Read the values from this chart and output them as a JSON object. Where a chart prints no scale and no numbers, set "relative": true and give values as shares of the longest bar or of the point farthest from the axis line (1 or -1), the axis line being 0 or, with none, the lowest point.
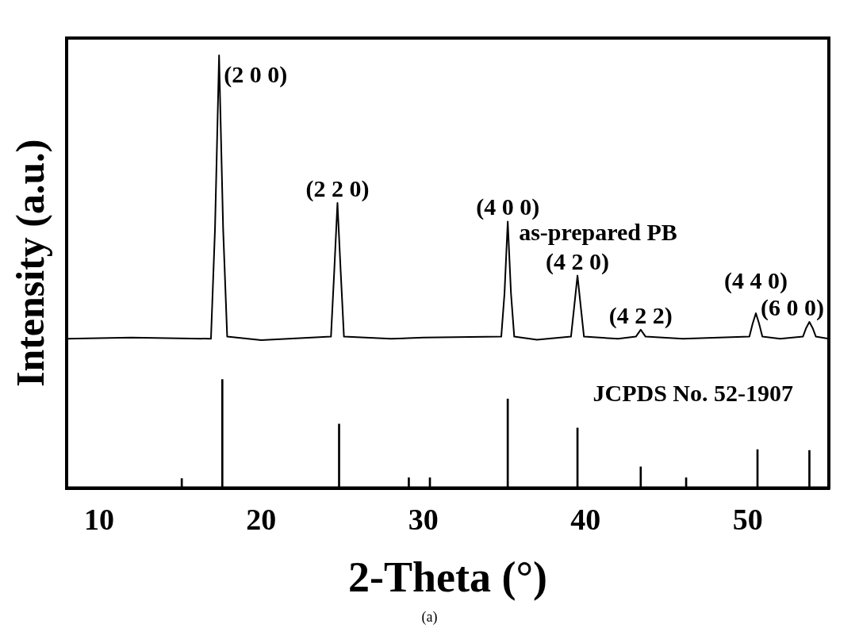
{
  "chart_data": {
    "type": "line",
    "relative": true,
    "xlabel": "2-Theta (°)",
    "ylabel": "Intensity (a.u.)",
    "xlim": [
      8,
      55
    ],
    "xticks": [
      10,
      20,
      30,
      40,
      50
    ],
    "grid": false,
    "legend": false,
    "marker": "none",
    "series": [
      {
        "name": "as-prepared PB",
        "color": "#000000",
        "x": [
          8,
          12,
          16.9,
          17.15,
          17.4,
          17.65,
          17.9,
          20,
          24.3,
          24.5,
          24.7,
          24.9,
          25.1,
          28,
          30,
          34.8,
          35.0,
          35.2,
          35.4,
          35.6,
          37,
          39.1,
          39.3,
          39.5,
          39.7,
          39.9,
          42,
          43.1,
          43.4,
          43.7,
          46,
          50.1,
          50.3,
          50.5,
          50.7,
          50.9,
          52,
          53.4,
          53.6,
          53.8,
          54.0,
          54.2,
          55
        ],
        "values": [
          0.345,
          0.348,
          0.345,
          0.6,
          1.0,
          0.6,
          0.35,
          0.342,
          0.35,
          0.5,
          0.659,
          0.5,
          0.35,
          0.345,
          0.348,
          0.35,
          0.45,
          0.616,
          0.45,
          0.35,
          0.343,
          0.35,
          0.42,
          0.491,
          0.42,
          0.35,
          0.345,
          0.35,
          0.366,
          0.35,
          0.345,
          0.35,
          0.38,
          0.404,
          0.38,
          0.35,
          0.345,
          0.35,
          0.37,
          0.384,
          0.37,
          0.35,
          0.345
        ]
      },
      {
        "name": "JCPDS No. 52-1907",
        "type": "bar",
        "color": "#000000",
        "x": [
          15.1,
          17.6,
          24.8,
          29.1,
          30.4,
          35.2,
          39.5,
          43.4,
          46.2,
          50.6,
          53.8
        ],
        "values": [
          0.022,
          0.251,
          0.148,
          0.024,
          0.024,
          0.206,
          0.139,
          0.049,
          0.024,
          0.089,
          0.087
        ]
      }
    ],
    "annotations": [
      {
        "text": "(2 0 0)",
        "x": 17.4,
        "y": 1.0
      },
      {
        "text": "(2 2 0)",
        "x": 24.7,
        "y": 0.659
      },
      {
        "text": "(4 0 0)",
        "x": 35.2,
        "y": 0.616
      },
      {
        "text": "(4 2 0)",
        "x": 39.5,
        "y": 0.491
      },
      {
        "text": "(4 2 2)",
        "x": 43.4,
        "y": 0.366
      },
      {
        "text": "(4 4 0)",
        "x": 50.5,
        "y": 0.404
      },
      {
        "text": "(6 0 0)",
        "x": 53.8,
        "y": 0.384
      },
      "(a)"
    ]
  }
}
